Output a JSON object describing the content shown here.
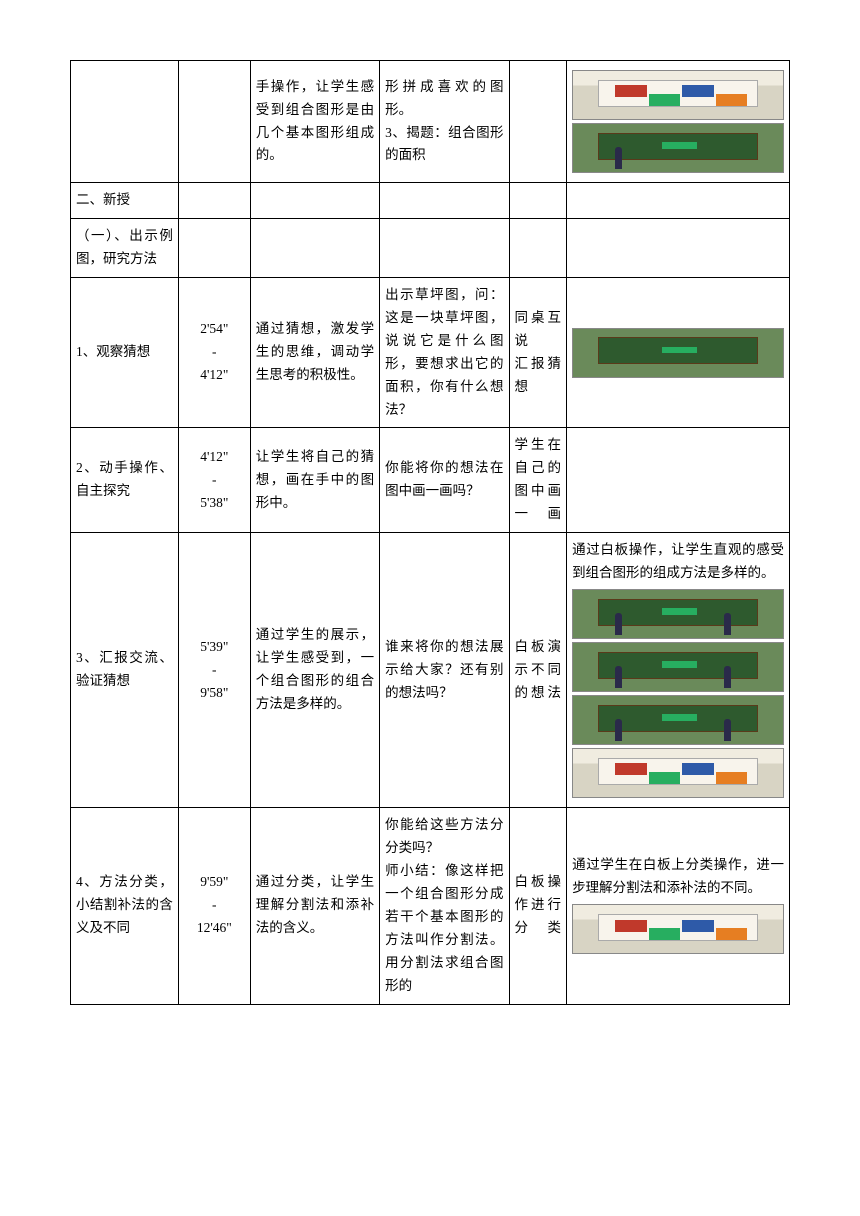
{
  "rows": [
    {
      "c0": "",
      "c1": "",
      "c2": "手操作，让学生感受到组合图形是由几个基本图形组成的。",
      "c3": "形拼成喜欢的图形。\n3、揭题：组合图形的面积",
      "c4": "",
      "thumbs": [
        "wb-shapes",
        "green-person"
      ]
    },
    {
      "c0": "二、新授",
      "c1": "",
      "c2": "",
      "c3": "",
      "c4": "",
      "thumbs": []
    },
    {
      "c0": "（一）、出示例图，研究方法",
      "c1": "",
      "c2": "",
      "c3": "",
      "c4": "",
      "thumbs": []
    },
    {
      "c0": "1、观察猜想",
      "c1": "2'54\"\n-\n4'12\"",
      "c2": "通过猜想，激发学生的思维，调动学生思考的积极性。",
      "c3": "出示草坪图，问：这是一块草坪图，说说它是什么图形，要想求出它的面积，你有什么想法？",
      "c4": "同桌互说\n汇报猜想",
      "thumbs": [
        "green-green"
      ]
    },
    {
      "c0": "2、动手操作、自主探究",
      "c1": "4'12\"\n-\n5'38\"",
      "c2": "让学生将自己的猜想，画在手中的图形中。",
      "c3": "你能将你的想法在图中画一画吗？",
      "c4": "学生在自己的图中画一画",
      "thumbs": []
    },
    {
      "c0": "3、汇报交流、验证猜想",
      "c1": "5'39\"\n-\n9'58\"",
      "c2": "通过学生的展示，让学生感受到，一个组合图形的组合方法是多样的。",
      "c3": "谁来将你的想法展示给大家？还有别的想法吗？",
      "c4": "白板演示不同的想法",
      "note": "通过白板操作，让学生直观的感受到组合图形的组成方法是多样的。",
      "thumbs": [
        "green-2p",
        "green-2p-b",
        "green-2p-c",
        "wb-shapes-2"
      ]
    },
    {
      "c0": "4、方法分类，小结割补法的含义及不同",
      "c1": "9'59\"\n-\n12'46\"",
      "c2": "通过分类，让学生理解分割法和添补法的含义。",
      "c3": "你能给这些方法分分类吗？\n师小结：像这样把一个组合图形分成若干个基本图形的方法叫作分割法。用分割法求组合图形的",
      "c4": "白板操作进行分类",
      "note": "通过学生在白板上分类操作，进一步理解分割法和添补法的不同。",
      "thumbs": [
        "wb-shapes-3"
      ]
    }
  ]
}
